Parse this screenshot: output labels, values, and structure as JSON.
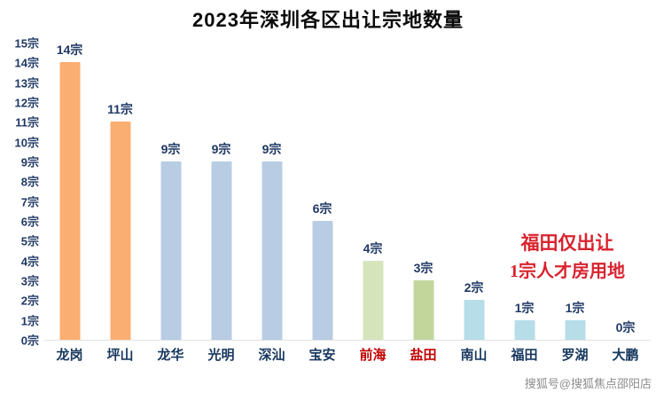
{
  "title": "2023年深圳各区出让宗地数量",
  "annotation": {
    "line1": "福田仅出让",
    "line2": "1宗人才房用地",
    "color": "#d9232e"
  },
  "watermark": "搜狐号@搜狐焦点邵阳店",
  "colors": {
    "axis_text": "#1f3864",
    "category_default": "#17375e",
    "category_highlight": "#c00000",
    "orange_bar": "#fbae72",
    "blue_bar": "#b8cce4",
    "yellowgreen_bar": "#d6e4bc",
    "green_bar": "#c2d69b",
    "cyan_bar": "#b6dde8",
    "watermark_text": "#8c8c8c"
  },
  "chart_data": {
    "type": "bar",
    "title": "2023年深圳各区出让宗地数量",
    "categories": [
      "龙岗",
      "坪山",
      "龙华",
      "光明",
      "深汕",
      "宝安",
      "前海",
      "盐田",
      "南山",
      "福田",
      "罗湖",
      "大鹏"
    ],
    "values": [
      14,
      11,
      9,
      9,
      9,
      6,
      4,
      3,
      2,
      1,
      1,
      0
    ],
    "value_labels": [
      "14宗",
      "11宗",
      "9宗",
      "9宗",
      "9宗",
      "6宗",
      "4宗",
      "3宗",
      "2宗",
      "1宗",
      "1宗",
      "0宗"
    ],
    "bar_colors": [
      "#fbae72",
      "#fbae72",
      "#b8cce4",
      "#b8cce4",
      "#b8cce4",
      "#b8cce4",
      "#d6e4bc",
      "#c2d69b",
      "#b6dde8",
      "#b6dde8",
      "#b6dde8",
      "#b6dde8"
    ],
    "category_colors": [
      "#17375e",
      "#17375e",
      "#17375e",
      "#17375e",
      "#17375e",
      "#17375e",
      "#c00000",
      "#c00000",
      "#17375e",
      "#17375e",
      "#17375e",
      "#17375e"
    ],
    "y_ticks": [
      "15宗",
      "14宗",
      "13宗",
      "12宗",
      "11宗",
      "10宗",
      "9宗",
      "8宗",
      "7宗",
      "6宗",
      "5宗",
      "4宗",
      "3宗",
      "2宗",
      "1宗",
      "0宗"
    ],
    "ylim": [
      0,
      15
    ],
    "xlabel": "",
    "ylabel": "",
    "grid": false,
    "legend": "none"
  }
}
